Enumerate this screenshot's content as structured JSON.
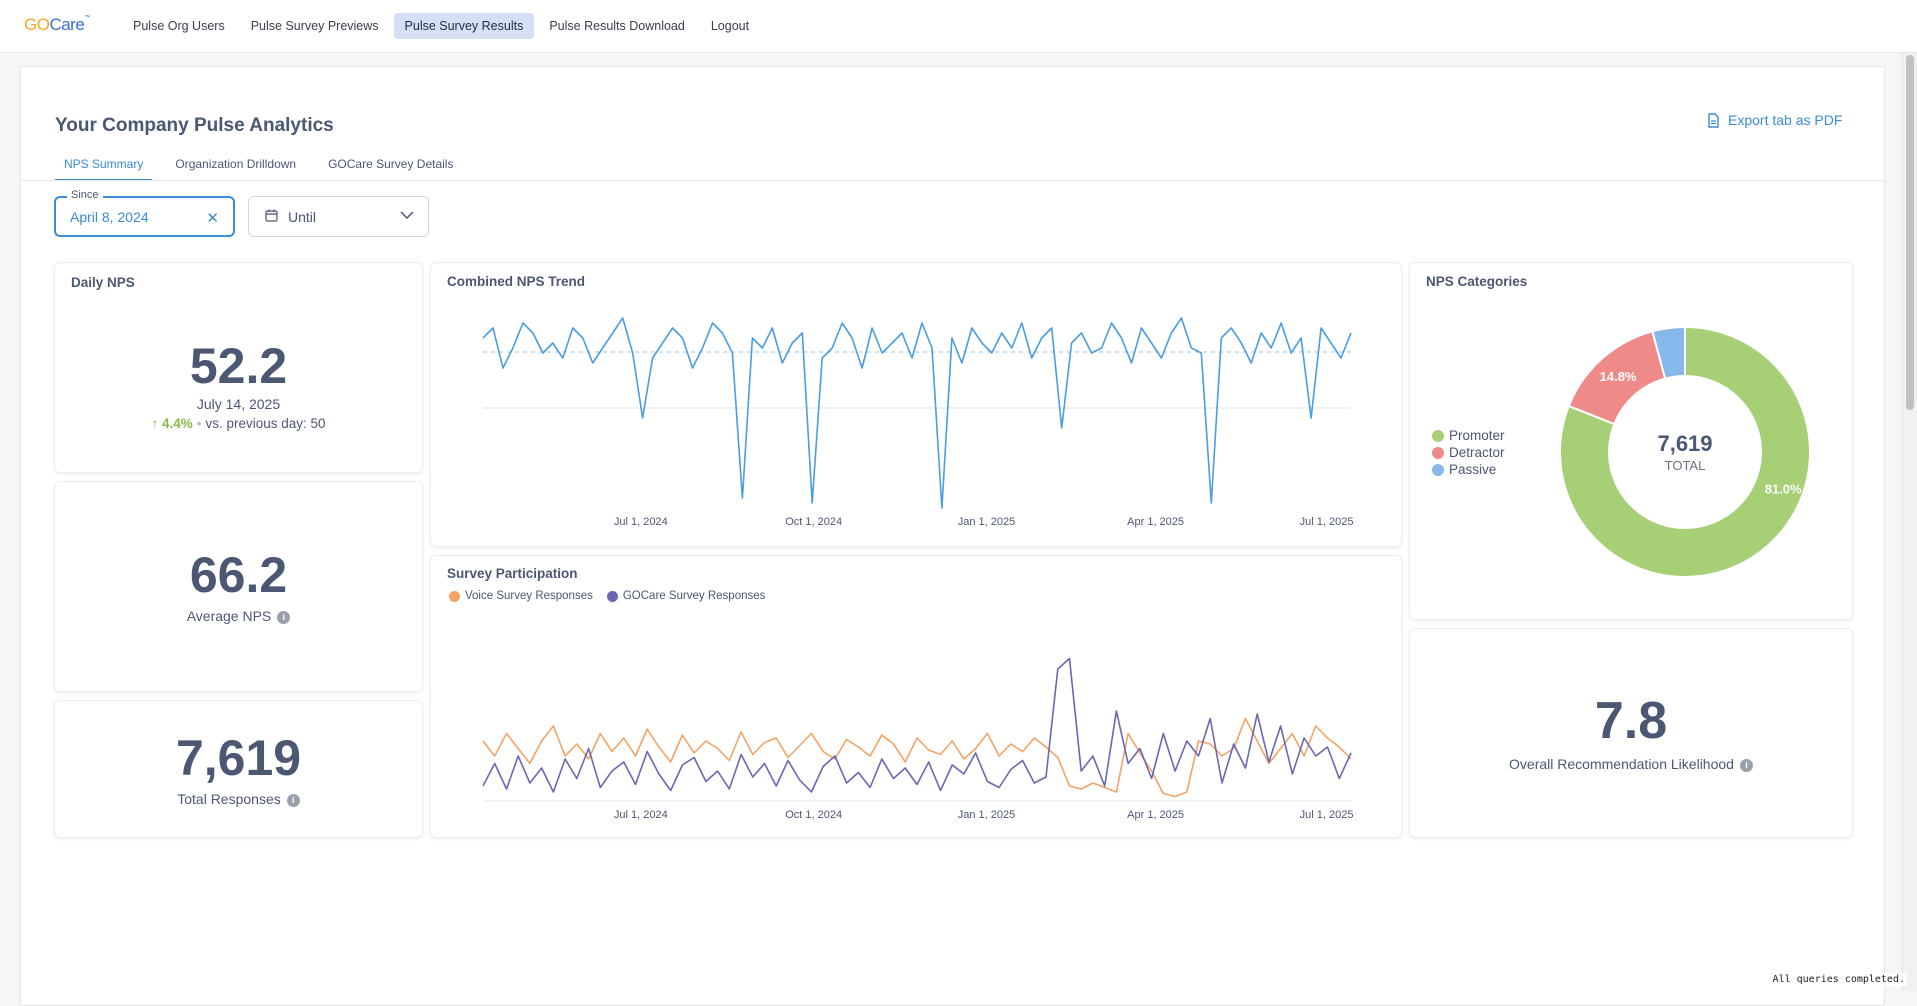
{
  "nav": {
    "logo_go": "GO",
    "logo_care": "Care",
    "logo_tm": "™",
    "links": [
      "Pulse Org Users",
      "Pulse Survey Previews",
      "Pulse Survey Results",
      "Pulse Results Download",
      "Logout"
    ],
    "active_link": "Pulse Survey Results"
  },
  "dashboard": {
    "title": "Your Company Pulse Analytics",
    "export_label": "Export tab as PDF",
    "tabs": [
      "NPS Summary",
      "Organization Drilldown",
      "GOCare Survey Details"
    ],
    "active_tab": "NPS Summary"
  },
  "filters": {
    "since_label": "Since",
    "since_value": "April 8, 2024",
    "until_label": "Until"
  },
  "daily_nps": {
    "title": "Daily NPS",
    "value": "52.2",
    "date": "July 14, 2025",
    "change": "4.4%",
    "previous": "vs. previous day: 50"
  },
  "average_nps": {
    "value": "66.2",
    "label": "Average NPS"
  },
  "total_responses": {
    "value": "7,619",
    "label": "Total Responses"
  },
  "recommendation": {
    "value": "7.8",
    "label": "Overall Recommendation Likelihood"
  },
  "status": {
    "text": "All queries completed."
  },
  "colors": {
    "accent": "#3b8bd6",
    "trend_line": "#4a9de0",
    "voice": "#f2a365",
    "gocare": "#6d66b3",
    "promoter": "#a6cf76",
    "detractor": "#ee8a87",
    "passive": "#87b8eb",
    "positive": "#84bb4c"
  },
  "chart_data": [
    {
      "type": "line",
      "title": "Combined NPS Trend",
      "x_range": [
        "2024-04-08",
        "2025-07-14"
      ],
      "x_ticks": [
        "Jul 1, 2024",
        "Oct 1, 2024",
        "Jan 1, 2025",
        "Apr 1, 2025",
        "Jul 1, 2025"
      ],
      "series": [
        {
          "values": [
            70,
            80,
            40,
            60,
            85,
            75,
            55,
            65,
            50,
            80,
            70,
            45,
            60,
            75,
            90,
            55,
            -10,
            50,
            65,
            80,
            70,
            40,
            60,
            85,
            75,
            55,
            -90,
            70,
            60,
            80,
            45,
            65,
            75,
            -95,
            50,
            60,
            85,
            70,
            40,
            80,
            55,
            65,
            75,
            50,
            85,
            60,
            -100,
            70,
            45,
            80,
            65,
            55,
            75,
            60,
            85,
            50,
            70,
            80,
            -20,
            65,
            75,
            55,
            60,
            85,
            70,
            45,
            80,
            65,
            50,
            75,
            90,
            60,
            55,
            -95,
            70,
            80,
            65,
            45,
            75,
            60,
            85,
            55,
            70,
            -10,
            80,
            65,
            50,
            75
          ]
        }
      ]
    },
    {
      "type": "line",
      "title": "Survey Participation",
      "x_range": [
        "2024-04-08",
        "2025-07-14"
      ],
      "x_ticks": [
        "Jul 1, 2024",
        "Oct 1, 2024",
        "Jan 1, 2025",
        "Apr 1, 2025",
        "Jul 1, 2025"
      ],
      "series": [
        {
          "name": "Voice Survey Responses",
          "values": [
            40,
            30,
            45,
            35,
            25,
            40,
            50,
            30,
            38,
            28,
            45,
            33,
            42,
            30,
            48,
            36,
            26,
            44,
            32,
            40,
            35,
            27,
            46,
            31,
            39,
            42,
            29,
            37,
            45,
            33,
            28,
            41,
            36,
            30,
            44,
            38,
            26,
            42,
            34,
            31,
            40,
            28,
            35,
            45,
            30,
            38,
            33,
            42,
            36,
            29,
            10,
            8,
            12,
            9,
            6,
            45,
            32,
            20,
            5,
            3,
            6,
            40,
            38,
            30,
            35,
            55,
            40,
            25,
            35,
            45,
            30,
            50,
            42,
            36,
            28
          ]
        },
        {
          "name": "GOCare Survey Responses",
          "values": [
            10,
            25,
            8,
            30,
            12,
            22,
            6,
            28,
            15,
            35,
            9,
            20,
            26,
            11,
            33,
            18,
            7,
            24,
            29,
            13,
            20,
            8,
            31,
            16,
            25,
            10,
            27,
            14,
            6,
            23,
            30,
            12,
            19,
            9,
            28,
            15,
            22,
            11,
            26,
            7,
            24,
            18,
            32,
            13,
            9,
            21,
            27,
            12,
            16,
            88,
            95,
            20,
            30,
            10,
            60,
            25,
            35,
            15,
            45,
            20,
            40,
            30,
            55,
            12,
            38,
            22,
            58,
            26,
            50,
            18,
            42,
            30,
            36,
            15,
            32
          ]
        }
      ]
    },
    {
      "type": "pie",
      "title": "NPS Categories",
      "total": "7,619",
      "total_label": "TOTAL",
      "slices": [
        {
          "label": "Promoter",
          "value": 81.0,
          "display": "81.0%"
        },
        {
          "label": "Detractor",
          "value": 14.8,
          "display": "14.8%"
        },
        {
          "label": "Passive",
          "value": 4.2,
          "display": ""
        }
      ]
    }
  ]
}
